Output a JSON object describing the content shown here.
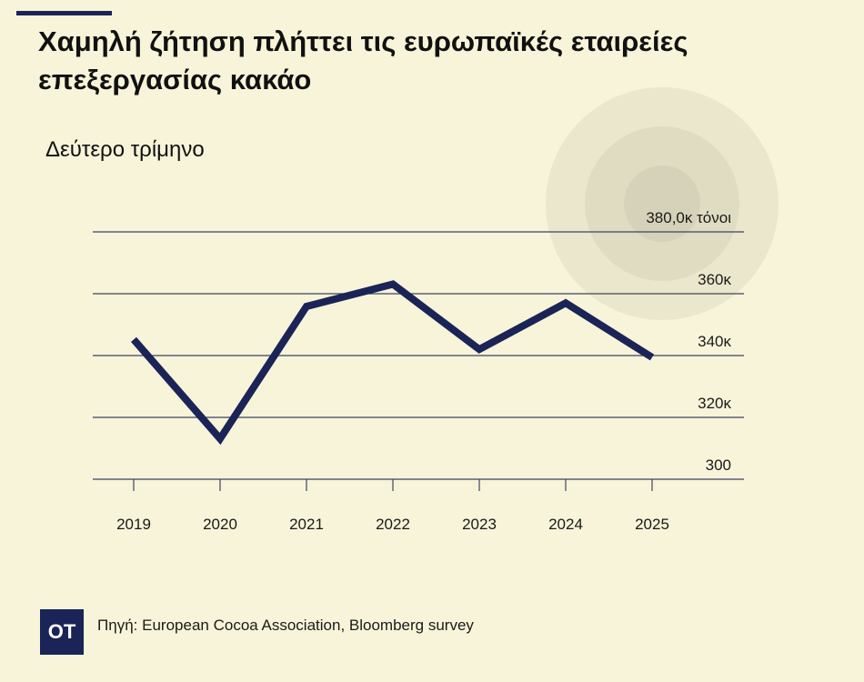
{
  "header": {
    "title": "Χαμηλή ζήτηση πλήττει τις ευρωπαϊκές εταιρείες επεξεργασίας κακάο",
    "subtitle": "Δεύτερο τρίμηνο"
  },
  "footer": {
    "logo_text": "OT",
    "source": "Πηγή: European Cocoa Association, Bloomberg survey"
  },
  "colors": {
    "background": "#f7f4d9",
    "line": "#1a2456",
    "accent": "#1a2456",
    "grid": "#3d4266",
    "decor_circles": [
      "#ebe7cd",
      "#e0dcc2",
      "#d6d2b9"
    ]
  },
  "chart_data": {
    "type": "line",
    "title": "Χαμηλή ζήτηση πλήττει τις ευρωπαϊκές εταιρείες επεξεργασίας κακάο",
    "subtitle": "Δεύτερο τρίμηνο",
    "categories": [
      "2019",
      "2020",
      "2021",
      "2022",
      "2023",
      "2024",
      "2025"
    ],
    "series": [
      {
        "values": [
          345.2,
          313.1,
          355.9,
          363.1,
          342.0,
          357.0,
          339.4
        ]
      }
    ],
    "ylim": [
      300,
      380
    ],
    "y_ticks": [
      300,
      320,
      340,
      360,
      380
    ],
    "y_tick_labels": [
      "300",
      "320κ",
      "340κ",
      "360κ",
      "380,0κ τόνοι"
    ],
    "grid": true,
    "legend": "none"
  }
}
